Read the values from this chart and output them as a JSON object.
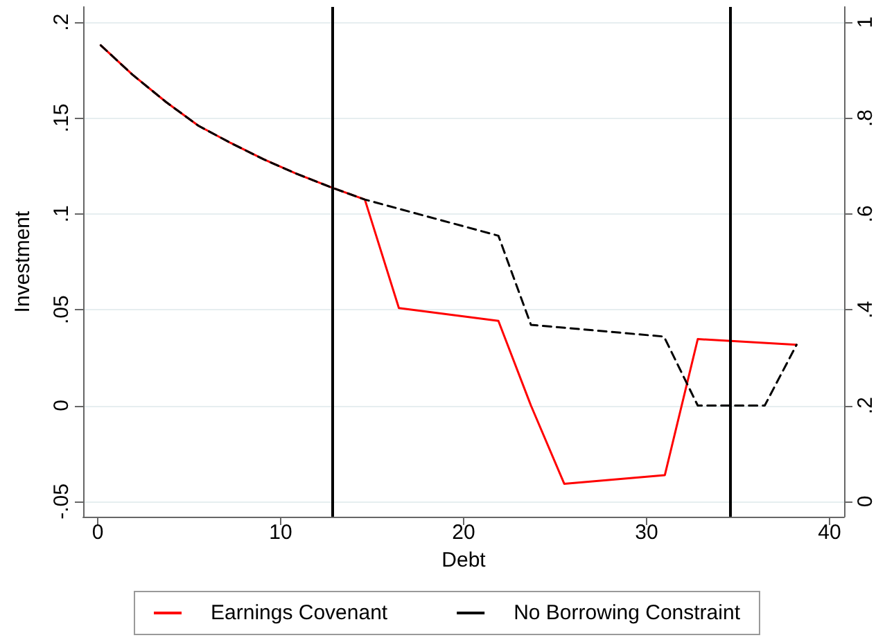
{
  "chart_data": {
    "type": "line",
    "xlabel": "Debt",
    "ylabel": "Investment",
    "xlim": [
      -0.8,
      40.8
    ],
    "xticks": [
      0,
      10,
      20,
      30,
      40
    ],
    "ylim": [
      -0.058,
      0.208
    ],
    "yticks": [
      {
        "value": -0.05,
        "label": "-.05"
      },
      0,
      {
        "value": 0.05,
        "label": ".05"
      },
      {
        "value": 0.1,
        "label": ".1"
      },
      {
        "value": 0.15,
        "label": ".15"
      },
      {
        "value": 0.2,
        "label": ".2"
      }
    ],
    "y2lim": [
      -0.032,
      1.032
    ],
    "y2ticks": [
      0,
      {
        "value": 0.2,
        "label": ".2"
      },
      {
        "value": 0.4,
        "label": ".4"
      },
      {
        "value": 0.6,
        "label": ".6"
      },
      {
        "value": 0.8,
        "label": ".8"
      },
      1
    ],
    "grid": "y",
    "legend": "bottom",
    "marker": "none",
    "series": [
      {
        "name": "Earnings Covenant",
        "color": "#ff0000",
        "line_style": "solid",
        "x": [
          0.16,
          1.9,
          3.73,
          5.5,
          7.27,
          9.04,
          10.8,
          12.8,
          14.6,
          16.46,
          21.9,
          23.68,
          25.5,
          31.0,
          32.8,
          38.2
        ],
        "values": [
          0.188,
          0.1726,
          0.1584,
          0.146,
          0.137,
          0.1286,
          0.1212,
          0.1137,
          0.1075,
          0.0509,
          0.0442,
          0,
          -0.0408,
          -0.0363,
          0.0347,
          0.0317
        ]
      },
      {
        "name": "No Borrowing Constraint",
        "color": "#000000",
        "line_style": "dashed",
        "x": [
          0.16,
          1.9,
          3.73,
          5.5,
          7.27,
          9.04,
          10.8,
          12.8,
          14.6,
          21.9,
          23.68,
          30.95,
          32.8,
          36.46,
          38.2
        ],
        "values": [
          0.188,
          0.1726,
          0.1584,
          0.146,
          0.137,
          0.1286,
          0.1212,
          0.1137,
          0.1075,
          0.0886,
          0.0421,
          0.036,
          0,
          0,
          0.0317
        ]
      }
    ],
    "ref_lines": [
      {
        "axis": "x",
        "value": 12.83,
        "color": "#000000"
      },
      {
        "axis": "x",
        "value": 34.6,
        "color": "#000000"
      }
    ]
  }
}
